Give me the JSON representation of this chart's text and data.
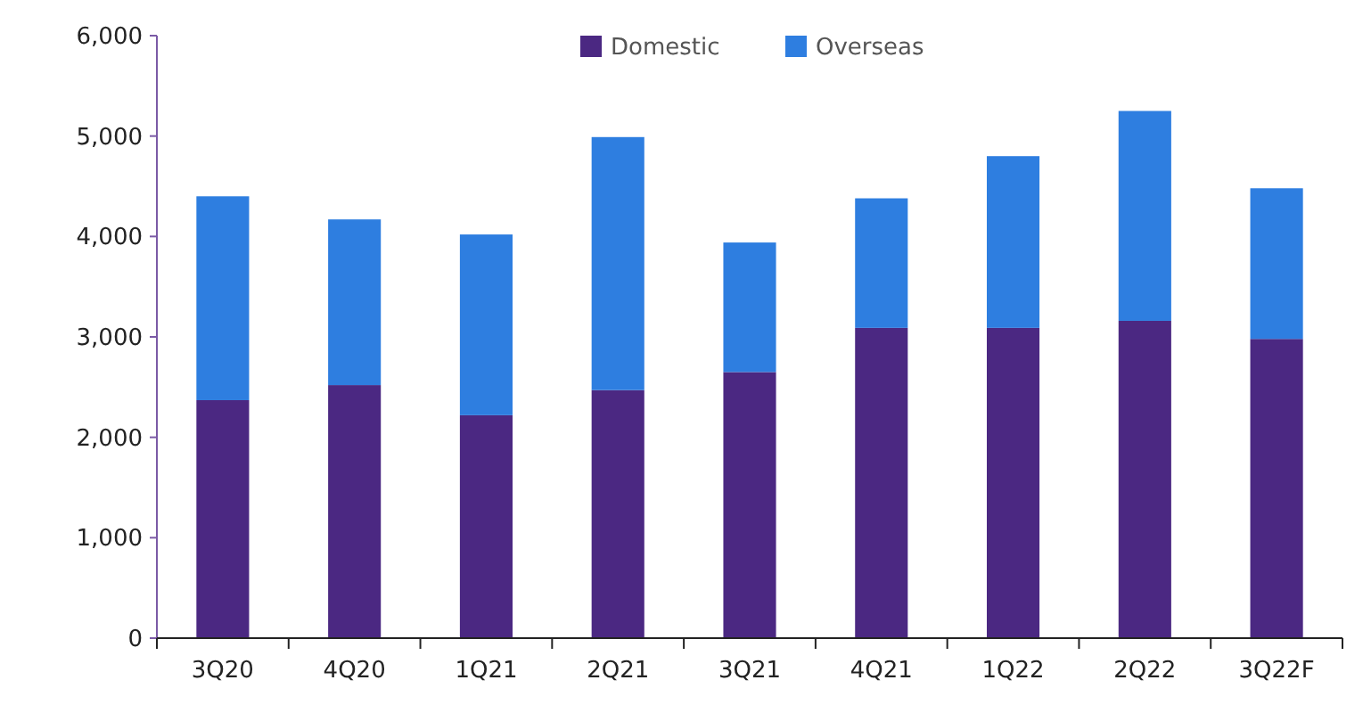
{
  "chart_data": {
    "type": "bar",
    "stacked": true,
    "categories": [
      "3Q20",
      "4Q20",
      "1Q21",
      "2Q21",
      "3Q21",
      "4Q21",
      "1Q22",
      "2Q22",
      "3Q22F"
    ],
    "series": [
      {
        "name": "Domestic",
        "color": "#4b2882",
        "values": [
          2370,
          2520,
          2220,
          2470,
          2650,
          3090,
          3090,
          3160,
          2980
        ]
      },
      {
        "name": "Overseas",
        "color": "#2e7ee0",
        "values": [
          2030,
          1650,
          1800,
          2520,
          1290,
          1290,
          1710,
          2090,
          1500
        ]
      }
    ],
    "ylim": [
      0,
      6000
    ],
    "yticks": [
      {
        "value": 0,
        "label": "0"
      },
      {
        "value": 1000,
        "label": "1,000"
      },
      {
        "value": 2000,
        "label": "2,000"
      },
      {
        "value": 3000,
        "label": "3,000"
      },
      {
        "value": 4000,
        "label": "4,000"
      },
      {
        "value": 5000,
        "label": "5,000"
      },
      {
        "value": 6000,
        "label": "6,000"
      }
    ],
    "grid": false,
    "legend": "top"
  }
}
